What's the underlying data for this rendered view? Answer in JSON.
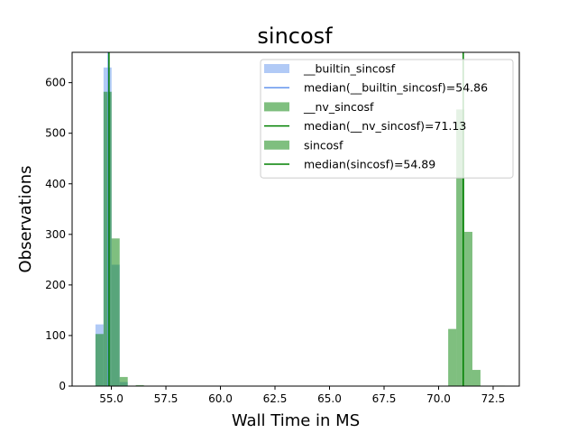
{
  "chart_data": {
    "type": "bar",
    "title": "sincosf",
    "xlabel": "Wall Time in MS",
    "ylabel": "Observations",
    "xlim": [
      53.2,
      73.7
    ],
    "ylim": [
      0,
      660
    ],
    "xticks": [
      55.0,
      57.5,
      60.0,
      62.5,
      65.0,
      67.5,
      70.0,
      72.5
    ],
    "xtick_labels": [
      "55.0",
      "57.5",
      "60.0",
      "62.5",
      "65.0",
      "67.5",
      "70.0",
      "72.5"
    ],
    "yticks": [
      0,
      100,
      200,
      300,
      400,
      500,
      600
    ],
    "ytick_labels": [
      "0",
      "100",
      "200",
      "300",
      "400",
      "500",
      "600"
    ],
    "bin_width": 0.37,
    "legend_placement": "upper right",
    "series": [
      {
        "name": "__builtin_sincosf",
        "color": "#6495ed",
        "opacity": 0.5,
        "bins": [
          {
            "x": 54.27,
            "count": 122
          },
          {
            "x": 54.64,
            "count": 630
          },
          {
            "x": 55.01,
            "count": 240
          },
          {
            "x": 55.38,
            "count": 8
          }
        ],
        "median": 54.86,
        "median_label": "median(__builtin_sincosf)=54.86",
        "median_color": "#6495ed"
      },
      {
        "name": "__nv_sincosf",
        "color": "#008000",
        "opacity": 0.5,
        "bins": [
          {
            "x": 70.44,
            "count": 113
          },
          {
            "x": 70.81,
            "count": 547
          },
          {
            "x": 71.18,
            "count": 305
          },
          {
            "x": 71.55,
            "count": 32
          },
          {
            "x": 72.66,
            "count": 1
          }
        ],
        "median": 71.13,
        "median_label": "median(__nv_sincosf)=71.13",
        "median_color": "#008000"
      },
      {
        "name": "sincosf",
        "color": "#008000",
        "opacity": 0.5,
        "bins": [
          {
            "x": 54.27,
            "count": 103
          },
          {
            "x": 54.64,
            "count": 582
          },
          {
            "x": 55.01,
            "count": 292
          },
          {
            "x": 55.38,
            "count": 18
          },
          {
            "x": 56.12,
            "count": 2
          }
        ],
        "median": 54.89,
        "median_label": "median(sincosf)=54.89",
        "median_color": "#008000"
      }
    ]
  }
}
